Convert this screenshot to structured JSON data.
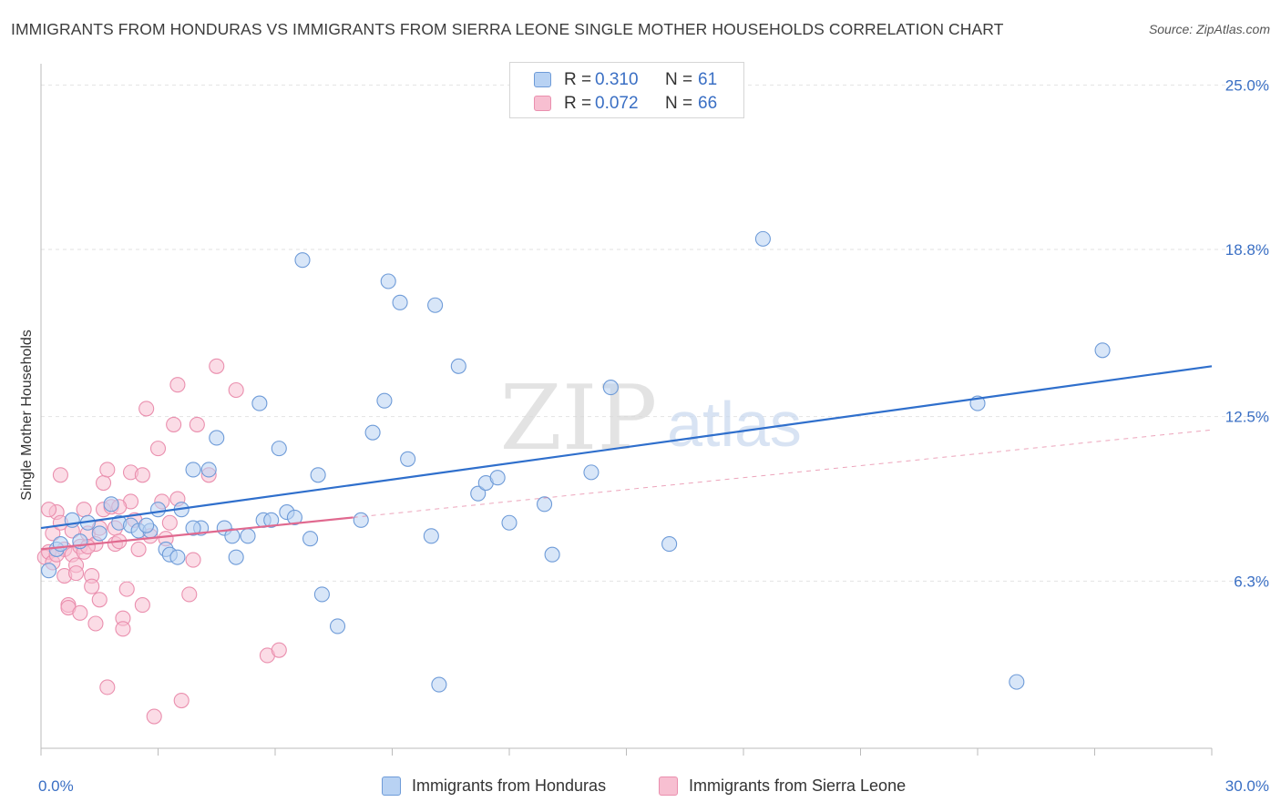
{
  "header": {
    "title": "IMMIGRANTS FROM HONDURAS VS IMMIGRANTS FROM SIERRA LEONE SINGLE MOTHER HOUSEHOLDS CORRELATION CHART",
    "source": "Source: ZipAtlas.com"
  },
  "watermark": {
    "zip": "ZIP",
    "atlas": "atlas"
  },
  "legend": {
    "r_label": "R =",
    "n_label": "N =",
    "series": [
      {
        "r": "0.310",
        "n": "61"
      },
      {
        "r": "0.072",
        "n": "66"
      }
    ]
  },
  "colors": {
    "blue_fill": "#b8d2f3",
    "blue_stroke": "#6e9bd8",
    "blue_line": "#2f6fcc",
    "pink_fill": "#f7bfd1",
    "pink_stroke": "#ea8fae",
    "pink_line": "#e0698f",
    "tick_label": "#3a6fc4",
    "grid": "#e2e2e2"
  },
  "chart_data": {
    "type": "scatter",
    "title": "IMMIGRANTS FROM HONDURAS VS IMMIGRANTS FROM SIERRA LEONE SINGLE MOTHER HOUSEHOLDS CORRELATION CHART",
    "xlabel": "",
    "ylabel": "Single Mother Households",
    "xlim": [
      0,
      30
    ],
    "ylim": [
      0,
      25.8
    ],
    "x_tick_labels": [
      "0.0%",
      "30.0%"
    ],
    "y_ticks": [
      6.3,
      12.5,
      18.8,
      25.0
    ],
    "y_tick_labels": [
      "6.3%",
      "12.5%",
      "18.8%",
      "25.0%"
    ],
    "grid": true,
    "legend_position": "top-center",
    "series": [
      {
        "name": "Immigrants from Honduras",
        "trend": {
          "x": [
            0,
            30
          ],
          "y": [
            8.3,
            14.4
          ]
        },
        "points": [
          [
            0.2,
            6.7
          ],
          [
            0.4,
            7.5
          ],
          [
            0.5,
            7.7
          ],
          [
            0.8,
            8.6
          ],
          [
            1.0,
            7.8
          ],
          [
            1.2,
            8.5
          ],
          [
            1.5,
            8.1
          ],
          [
            1.8,
            9.2
          ],
          [
            2.0,
            8.5
          ],
          [
            2.3,
            8.4
          ],
          [
            2.5,
            8.2
          ],
          [
            2.8,
            8.2
          ],
          [
            3.0,
            9.0
          ],
          [
            3.2,
            7.5
          ],
          [
            3.3,
            7.3
          ],
          [
            3.5,
            7.2
          ],
          [
            3.6,
            9.0
          ],
          [
            3.9,
            10.5
          ],
          [
            4.1,
            8.3
          ],
          [
            4.3,
            10.5
          ],
          [
            4.5,
            11.7
          ],
          [
            4.7,
            8.3
          ],
          [
            4.9,
            8.0
          ],
          [
            5.0,
            7.2
          ],
          [
            5.3,
            8.0
          ],
          [
            5.6,
            13.0
          ],
          [
            5.7,
            8.6
          ],
          [
            5.9,
            8.6
          ],
          [
            6.1,
            11.3
          ],
          [
            6.3,
            8.9
          ],
          [
            6.5,
            8.7
          ],
          [
            6.7,
            18.4
          ],
          [
            6.9,
            7.9
          ],
          [
            7.1,
            10.3
          ],
          [
            7.2,
            5.8
          ],
          [
            7.6,
            4.6
          ],
          [
            8.2,
            8.6
          ],
          [
            8.5,
            11.9
          ],
          [
            8.8,
            13.1
          ],
          [
            8.9,
            17.6
          ],
          [
            9.2,
            16.8
          ],
          [
            9.4,
            10.9
          ],
          [
            10.0,
            8.0
          ],
          [
            10.1,
            16.7
          ],
          [
            10.2,
            2.4
          ],
          [
            10.7,
            14.4
          ],
          [
            11.2,
            9.6
          ],
          [
            11.4,
            10.0
          ],
          [
            11.7,
            10.2
          ],
          [
            12.0,
            8.5
          ],
          [
            12.9,
            9.2
          ],
          [
            13.1,
            7.3
          ],
          [
            14.1,
            10.4
          ],
          [
            14.6,
            13.6
          ],
          [
            16.1,
            7.7
          ],
          [
            18.5,
            19.2
          ],
          [
            24.0,
            13.0
          ],
          [
            25.0,
            2.5
          ],
          [
            27.2,
            15.0
          ],
          [
            2.7,
            8.4
          ],
          [
            3.9,
            8.3
          ]
        ]
      },
      {
        "name": "Immigrants from Sierra Leone",
        "trend": {
          "x": [
            0,
            8
          ],
          "y": [
            7.5,
            8.7
          ]
        },
        "trend_extended": {
          "x": [
            8,
            30
          ],
          "y": [
            8.7,
            12.0
          ]
        },
        "points": [
          [
            0.1,
            7.2
          ],
          [
            0.2,
            7.4
          ],
          [
            0.3,
            8.1
          ],
          [
            0.3,
            7.0
          ],
          [
            0.4,
            8.9
          ],
          [
            0.5,
            8.5
          ],
          [
            0.5,
            10.3
          ],
          [
            0.6,
            7.5
          ],
          [
            0.6,
            6.5
          ],
          [
            0.7,
            5.4
          ],
          [
            0.7,
            5.3
          ],
          [
            0.8,
            8.2
          ],
          [
            0.8,
            7.3
          ],
          [
            0.9,
            6.9
          ],
          [
            0.9,
            6.6
          ],
          [
            1.0,
            5.1
          ],
          [
            1.0,
            7.6
          ],
          [
            1.1,
            7.4
          ],
          [
            1.1,
            9.0
          ],
          [
            1.2,
            8.1
          ],
          [
            1.3,
            6.5
          ],
          [
            1.3,
            6.1
          ],
          [
            1.4,
            7.7
          ],
          [
            1.4,
            4.7
          ],
          [
            1.5,
            5.6
          ],
          [
            1.6,
            10.0
          ],
          [
            1.6,
            9.0
          ],
          [
            1.7,
            10.5
          ],
          [
            1.7,
            2.3
          ],
          [
            1.8,
            9.1
          ],
          [
            1.9,
            7.7
          ],
          [
            1.9,
            8.3
          ],
          [
            2.0,
            7.8
          ],
          [
            2.1,
            4.9
          ],
          [
            2.1,
            4.5
          ],
          [
            2.2,
            6.0
          ],
          [
            2.3,
            9.3
          ],
          [
            2.3,
            10.4
          ],
          [
            2.4,
            8.6
          ],
          [
            2.5,
            7.5
          ],
          [
            2.6,
            5.4
          ],
          [
            2.7,
            12.8
          ],
          [
            2.8,
            8.0
          ],
          [
            2.9,
            1.2
          ],
          [
            3.0,
            11.3
          ],
          [
            3.1,
            9.3
          ],
          [
            3.2,
            7.9
          ],
          [
            3.3,
            8.5
          ],
          [
            3.4,
            12.2
          ],
          [
            3.5,
            9.4
          ],
          [
            3.5,
            13.7
          ],
          [
            3.6,
            1.8
          ],
          [
            3.8,
            5.8
          ],
          [
            3.9,
            7.1
          ],
          [
            4.0,
            12.2
          ],
          [
            4.3,
            10.3
          ],
          [
            4.5,
            14.4
          ],
          [
            5.0,
            13.5
          ],
          [
            5.8,
            3.5
          ],
          [
            6.1,
            3.7
          ],
          [
            0.2,
            9.0
          ],
          [
            0.4,
            7.3
          ],
          [
            1.2,
            7.6
          ],
          [
            2.0,
            9.1
          ],
          [
            2.6,
            10.3
          ],
          [
            1.5,
            8.3
          ]
        ]
      }
    ]
  },
  "bottom_legend": [
    {
      "label": "Immigrants from Honduras"
    },
    {
      "label": "Immigrants from Sierra Leone"
    }
  ]
}
